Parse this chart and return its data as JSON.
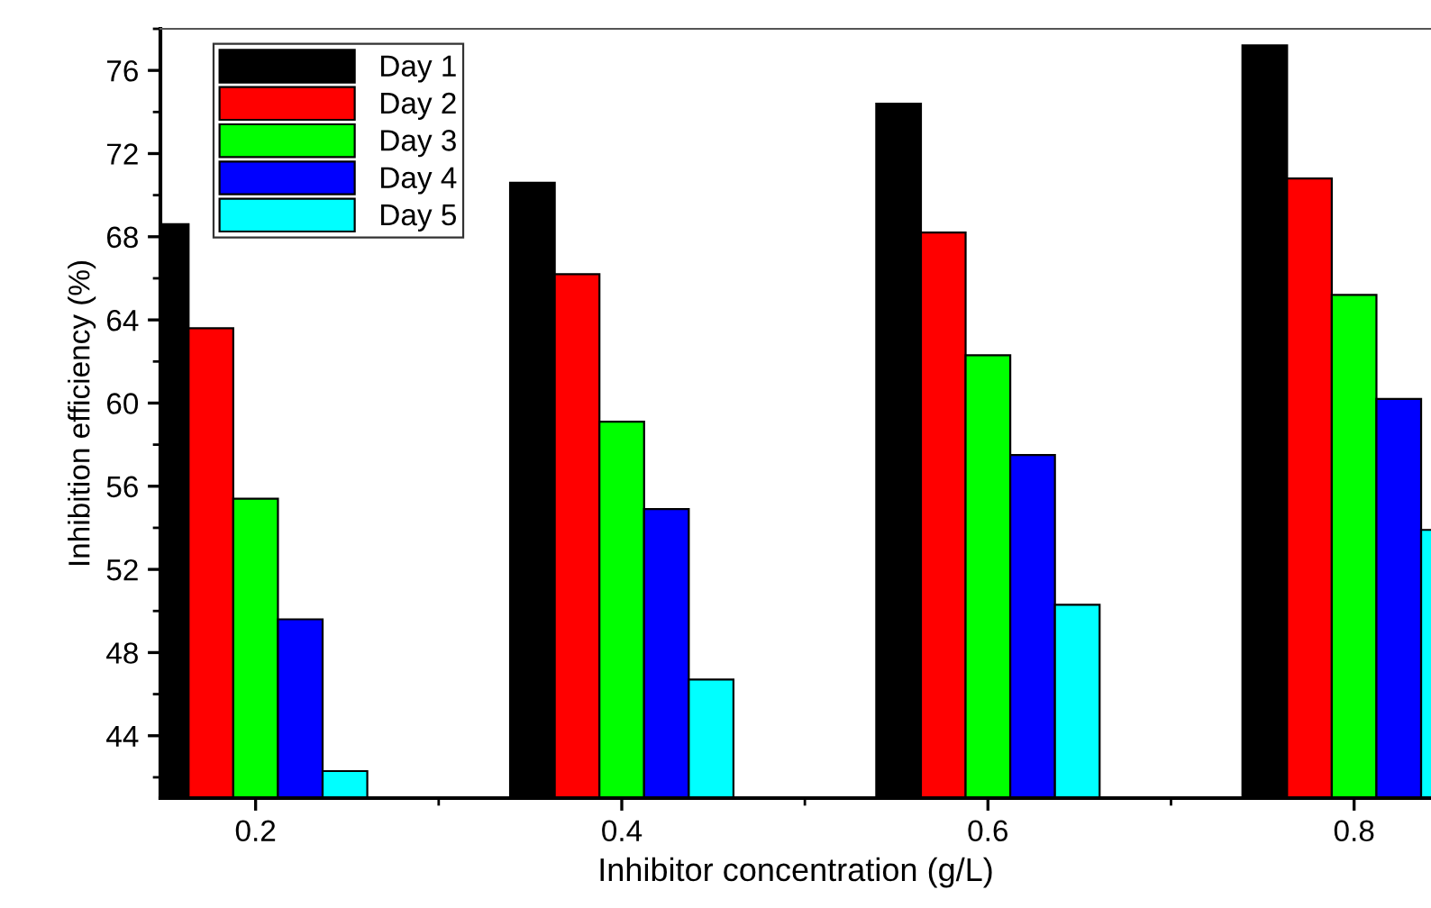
{
  "chart_data": {
    "type": "bar",
    "xlabel": "Inhibitor concentration (g/L)",
    "ylabel": "Inhibition efficiency (%)",
    "x": [
      0.2,
      0.4,
      0.6,
      0.8
    ],
    "series": [
      {
        "name": "Day 1",
        "color": "#000000",
        "values": [
          68.6,
          70.6,
          74.4,
          77.2
        ]
      },
      {
        "name": "Day 2",
        "color": "#ff0000",
        "values": [
          63.6,
          66.2,
          68.2,
          70.8
        ]
      },
      {
        "name": "Day 3",
        "color": "#00ff00",
        "values": [
          55.4,
          59.1,
          62.3,
          65.2
        ]
      },
      {
        "name": "Day 4",
        "color": "#0000ff",
        "values": [
          49.6,
          54.9,
          57.5,
          60.2
        ]
      },
      {
        "name": "Day 5",
        "color": "#00ffff",
        "values": [
          42.3,
          46.7,
          50.3,
          53.9
        ]
      }
    ],
    "xlim": [
      0.148,
      0.842
    ],
    "xticks": [
      0.2,
      {
        "value": 0.3,
        "label": null
      },
      0.4,
      {
        "value": 0.5,
        "label": null
      },
      0.6,
      {
        "value": 0.7,
        "label": null
      },
      0.8
    ],
    "ylim": [
      41,
      78
    ],
    "yticks": [
      {
        "value": 42,
        "label": null
      },
      44,
      {
        "value": 46,
        "label": null
      },
      48,
      {
        "value": 50,
        "label": null
      },
      52,
      {
        "value": 54,
        "label": null
      },
      56,
      {
        "value": 58,
        "label": null
      },
      60,
      {
        "value": 62,
        "label": null
      },
      64,
      {
        "value": 66,
        "label": null
      },
      68,
      {
        "value": 70,
        "label": null
      },
      72,
      {
        "value": 74,
        "label": null
      },
      76,
      {
        "value": 78,
        "label": null
      }
    ],
    "grid": false,
    "legend": "top left"
  }
}
